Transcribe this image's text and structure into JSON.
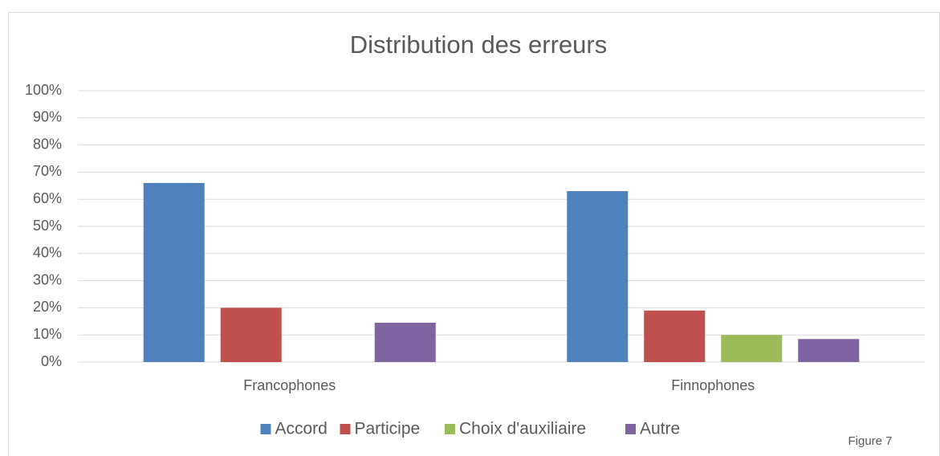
{
  "chart_data": {
    "type": "bar",
    "title": "Distribution des erreurs",
    "categories": [
      "Francophones",
      "Finnophones"
    ],
    "series": [
      {
        "name": "Accord",
        "color": "#4f81bd",
        "values": [
          66,
          63
        ]
      },
      {
        "name": "Participe",
        "color": "#c0504d",
        "values": [
          20,
          19
        ]
      },
      {
        "name": "Choix d'auxiliaire",
        "color": "#9bbb59",
        "values": [
          0,
          10
        ]
      },
      {
        "name": "Autre",
        "color": "#8064a2",
        "values": [
          14.5,
          8.5
        ]
      }
    ],
    "ylim": [
      0,
      100
    ],
    "yticks": [
      {
        "value": 0,
        "label": "0%"
      },
      {
        "value": 10,
        "label": "10%"
      },
      {
        "value": 20,
        "label": "20%"
      },
      {
        "value": 30,
        "label": "30%"
      },
      {
        "value": 40,
        "label": "40%"
      },
      {
        "value": 50,
        "label": "50%"
      },
      {
        "value": 60,
        "label": "60%"
      },
      {
        "value": 70,
        "label": "70%"
      },
      {
        "value": 80,
        "label": "80%"
      },
      {
        "value": 90,
        "label": "90%"
      },
      {
        "value": 100,
        "label": "100%"
      }
    ],
    "grid": true,
    "legend": "bottom",
    "annotation": "Figure 7"
  }
}
